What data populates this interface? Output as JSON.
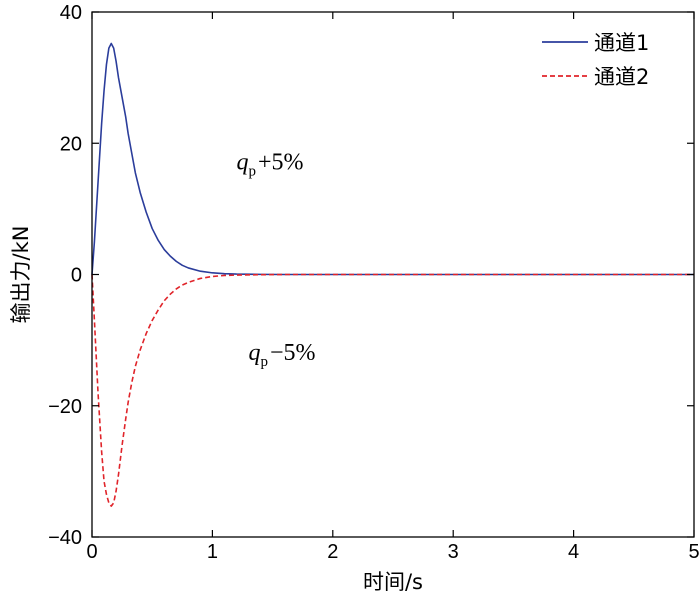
{
  "chart_data": {
    "type": "line",
    "xlabel": "时间/s",
    "ylabel": "输出力/kN",
    "xlim": [
      0,
      5
    ],
    "ylim": [
      -40,
      40
    ],
    "xticks": [
      0,
      1,
      2,
      3,
      4,
      5
    ],
    "yticks": [
      -40,
      -20,
      0,
      20,
      40
    ],
    "ytick_labels": [
      "−40",
      "−20",
      "0",
      "20",
      "40"
    ],
    "grid": false,
    "legend_placement": "top-right",
    "series": [
      {
        "name": "通道1",
        "color": "#2b3d9b",
        "dash": "solid",
        "x": [
          0,
          0.02,
          0.05,
          0.08,
          0.1,
          0.12,
          0.14,
          0.16,
          0.18,
          0.2,
          0.22,
          0.25,
          0.28,
          0.3,
          0.33,
          0.36,
          0.4,
          0.45,
          0.5,
          0.55,
          0.6,
          0.65,
          0.7,
          0.75,
          0.8,
          0.9,
          1.0,
          1.1,
          1.2,
          1.4,
          1.6,
          2.0,
          3.0,
          4.0,
          5.0
        ],
        "y": [
          0,
          5,
          14,
          23,
          28,
          32,
          34.5,
          35.2,
          34.5,
          32.5,
          30,
          27,
          24,
          21.5,
          18.5,
          15.5,
          12.5,
          9.5,
          7,
          5.2,
          3.8,
          2.8,
          2.0,
          1.4,
          1.0,
          0.5,
          0.25,
          0.12,
          0.06,
          0.02,
          0,
          0,
          0,
          0,
          0
        ]
      },
      {
        "name": "通道2",
        "color": "#e0242a",
        "dash": "dashed",
        "x": [
          0,
          0.02,
          0.05,
          0.08,
          0.1,
          0.12,
          0.14,
          0.16,
          0.18,
          0.2,
          0.22,
          0.25,
          0.28,
          0.3,
          0.33,
          0.36,
          0.4,
          0.45,
          0.5,
          0.55,
          0.6,
          0.65,
          0.7,
          0.75,
          0.8,
          0.9,
          1.0,
          1.1,
          1.2,
          1.4,
          1.6,
          2.0,
          3.0,
          4.0,
          5.0
        ],
        "y": [
          0,
          -7,
          -18,
          -27,
          -31.5,
          -33.5,
          -34.8,
          -35.3,
          -34.8,
          -33,
          -30.5,
          -26,
          -22,
          -19.5,
          -16.5,
          -14,
          -11.5,
          -9,
          -7,
          -5.4,
          -4.0,
          -3.0,
          -2.2,
          -1.6,
          -1.2,
          -0.6,
          -0.3,
          -0.15,
          -0.08,
          -0.03,
          0,
          0,
          0,
          0,
          0
        ]
      }
    ],
    "annotations": [
      {
        "q": "q",
        "sub": "p",
        "text": "+5%",
        "x": 1.2,
        "y": 16
      },
      {
        "q": "q",
        "sub": "p",
        "text": "−5%",
        "x": 1.3,
        "y": -13
      }
    ]
  }
}
